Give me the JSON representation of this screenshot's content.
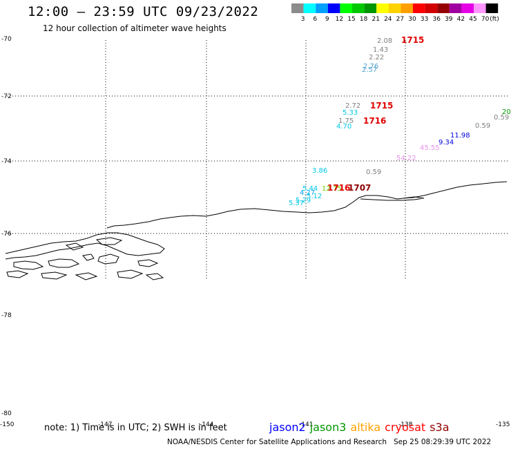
{
  "title": "12:00 – 23:59 UTC 09/23/2022",
  "subtitle": "12 hour collection of altimeter wave heights",
  "legend": {
    "unit": "(ft)",
    "bins": [
      {
        "label": "3",
        "color": "#8c8c8c"
      },
      {
        "label": "6",
        "color": "#00ffff"
      },
      {
        "label": "9",
        "color": "#00a0ff"
      },
      {
        "label": "12",
        "color": "#0000ff"
      },
      {
        "label": "15",
        "color": "#00ff00"
      },
      {
        "label": "18",
        "color": "#00c800"
      },
      {
        "label": "21",
        "color": "#009600"
      },
      {
        "label": "24",
        "color": "#ffff00"
      },
      {
        "label": "27",
        "color": "#ffd200"
      },
      {
        "label": "30",
        "color": "#ffa000"
      },
      {
        "label": "33",
        "color": "#ff0000"
      },
      {
        "label": "36",
        "color": "#d20000"
      },
      {
        "label": "39",
        "color": "#960000"
      },
      {
        "label": "42",
        "color": "#a000a0"
      },
      {
        "label": "45",
        "color": "#e600e6"
      },
      {
        "label": "70",
        "color": "#ff96ff"
      },
      {
        "label": "",
        "color": "#000000"
      }
    ]
  },
  "axes": {
    "lat_labels": [
      "-70",
      "-72",
      "-74",
      "-76",
      "-78",
      "-80"
    ],
    "lon_labels": [
      "-150",
      "-147",
      "-144",
      "-141",
      "-138",
      "-135"
    ]
  },
  "observations": [
    {
      "text": "2.08",
      "color": "#808080"
    },
    {
      "text": "1715",
      "color": "#e00000"
    },
    {
      "text": "1.43",
      "color": "#808080"
    },
    {
      "text": "2.22",
      "color": "#808080"
    },
    {
      "text": "2.76",
      "color": "#4fa0d0"
    },
    {
      "text": "2.57",
      "color": "#4fa0d0"
    },
    {
      "text": "2.72",
      "color": "#808080"
    },
    {
      "text": "1715",
      "color": "#e00000"
    },
    {
      "text": "5.33",
      "color": "#00c8e6"
    },
    {
      "text": "1.75",
      "color": "#808080"
    },
    {
      "text": "1716",
      "color": "#e00000"
    },
    {
      "text": "4.70",
      "color": "#00c8e6"
    },
    {
      "text": "20",
      "color": "#009600"
    },
    {
      "text": "0.59",
      "color": "#808080"
    },
    {
      "text": "0.59",
      "color": "#808080"
    },
    {
      "text": "11.98",
      "color": "#0000e0"
    },
    {
      "text": "9.34",
      "color": "#0000e0"
    },
    {
      "text": "45.55",
      "color": "#e890e8"
    },
    {
      "text": "54.22",
      "color": "#e890e8"
    },
    {
      "text": "3.86",
      "color": "#00c8e6"
    },
    {
      "text": "0.59",
      "color": "#808080"
    },
    {
      "text": "5.44",
      "color": "#00c8e6"
    },
    {
      "text": "12.75",
      "color": "#6fd000"
    },
    {
      "text": "1716",
      "color": "#e00000"
    },
    {
      "text": "1707",
      "color": "#900000"
    },
    {
      "text": "4.27",
      "color": "#00a0ff"
    },
    {
      "text": "5.12",
      "color": "#00c8e6"
    },
    {
      "text": "5.29",
      "color": "#00c8e6"
    },
    {
      "text": "5.37",
      "color": "#00c8e6"
    }
  ],
  "footer": {
    "note": "note: 1) Time is in UTC; 2) SWH is in feet",
    "satellites": [
      {
        "name": "jason2",
        "color": "#0000ff"
      },
      {
        "name": "jason3",
        "color": "#009600"
      },
      {
        "name": "altika",
        "color": "#ffa000"
      },
      {
        "name": "cryosat",
        "color": "#ff0000"
      },
      {
        "name": "s3a",
        "color": "#900000"
      }
    ],
    "credit": "NOAA/NESDIS Center for Satellite Applications and Research",
    "timestamp": "Sep 25 08:29:39 UTC 2022"
  }
}
